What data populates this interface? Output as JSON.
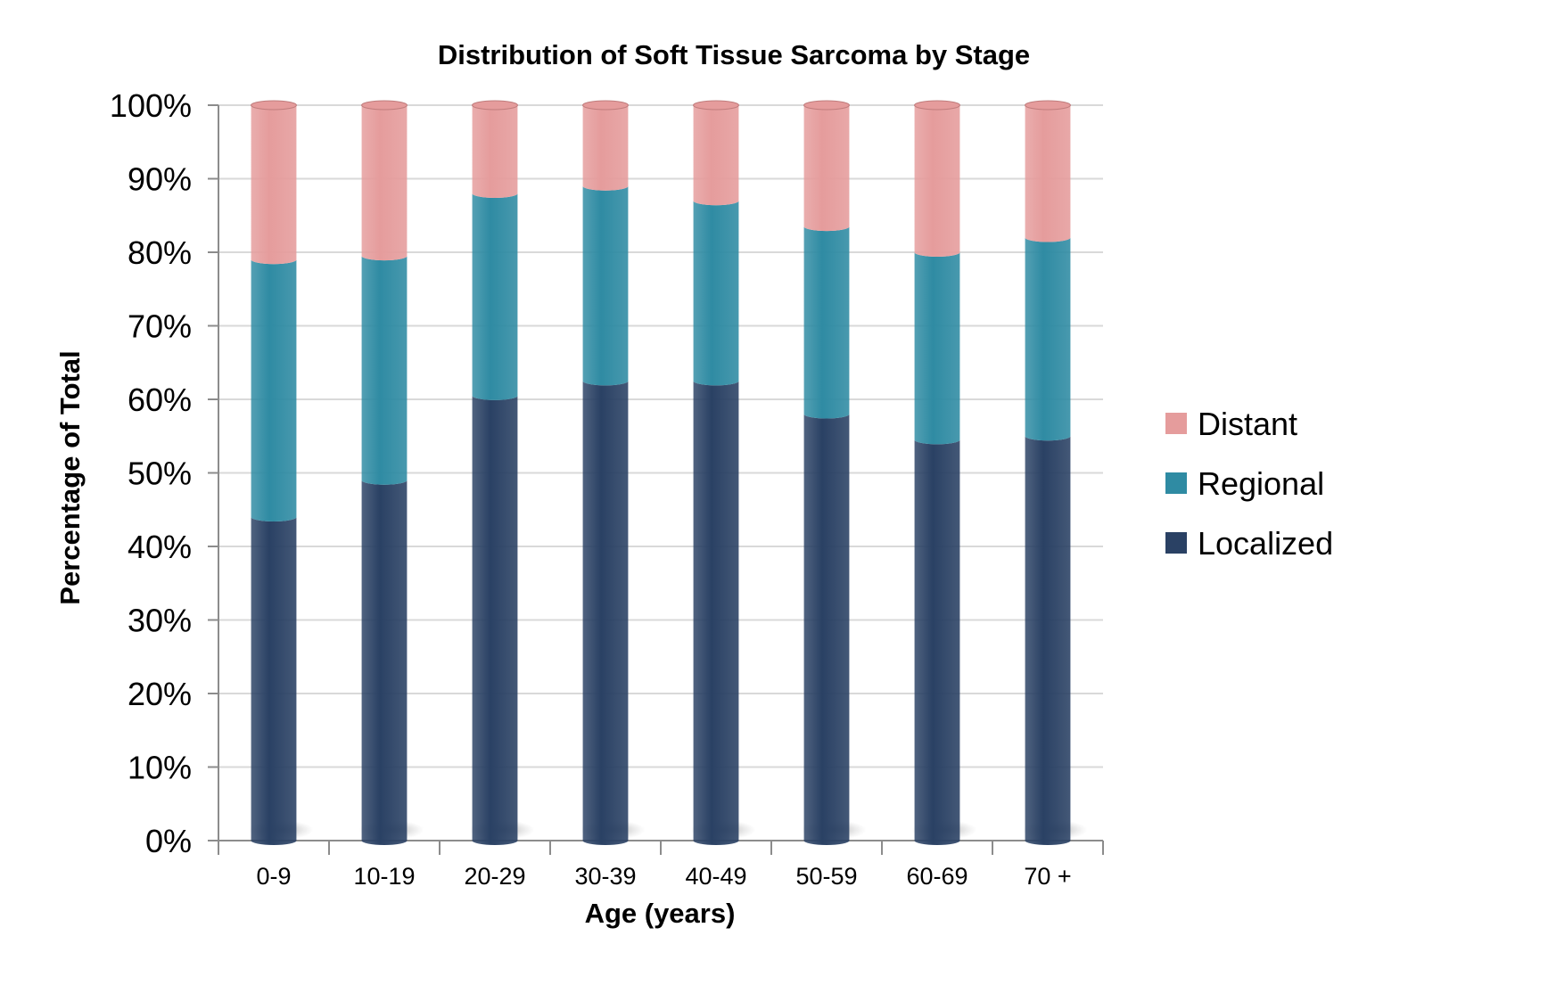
{
  "chart_data": {
    "type": "bar",
    "stacked": true,
    "percent": true,
    "title": "Distribution of Soft Tissue Sarcoma by Stage",
    "xlabel": "Age (years)",
    "ylabel": "Percentage of Total",
    "ylim": [
      0,
      100
    ],
    "ytick_labels": [
      "0%",
      "10%",
      "20%",
      "30%",
      "40%",
      "50%",
      "60%",
      "70%",
      "80%",
      "90%",
      "100%"
    ],
    "categories": [
      "0-9",
      "10-19",
      "20-29",
      "30-39",
      "40-49",
      "50-59",
      "60-69",
      "70 +"
    ],
    "series": [
      {
        "name": "Localized",
        "color": "#2a4164",
        "values": [
          44,
          49,
          60.5,
          62.5,
          62.5,
          58,
          54.5,
          55
        ]
      },
      {
        "name": "Regional",
        "color": "#2f8ba3",
        "values": [
          35,
          30.5,
          27.5,
          26.5,
          24.5,
          25.5,
          25.5,
          27
        ]
      },
      {
        "name": "Distant",
        "color": "#e59c9c",
        "values": [
          21,
          20.5,
          12,
          11,
          13,
          16.5,
          20,
          18
        ]
      }
    ],
    "legend": {
      "placement": "right",
      "order": [
        "Distant",
        "Regional",
        "Localized"
      ]
    },
    "grid": true
  }
}
